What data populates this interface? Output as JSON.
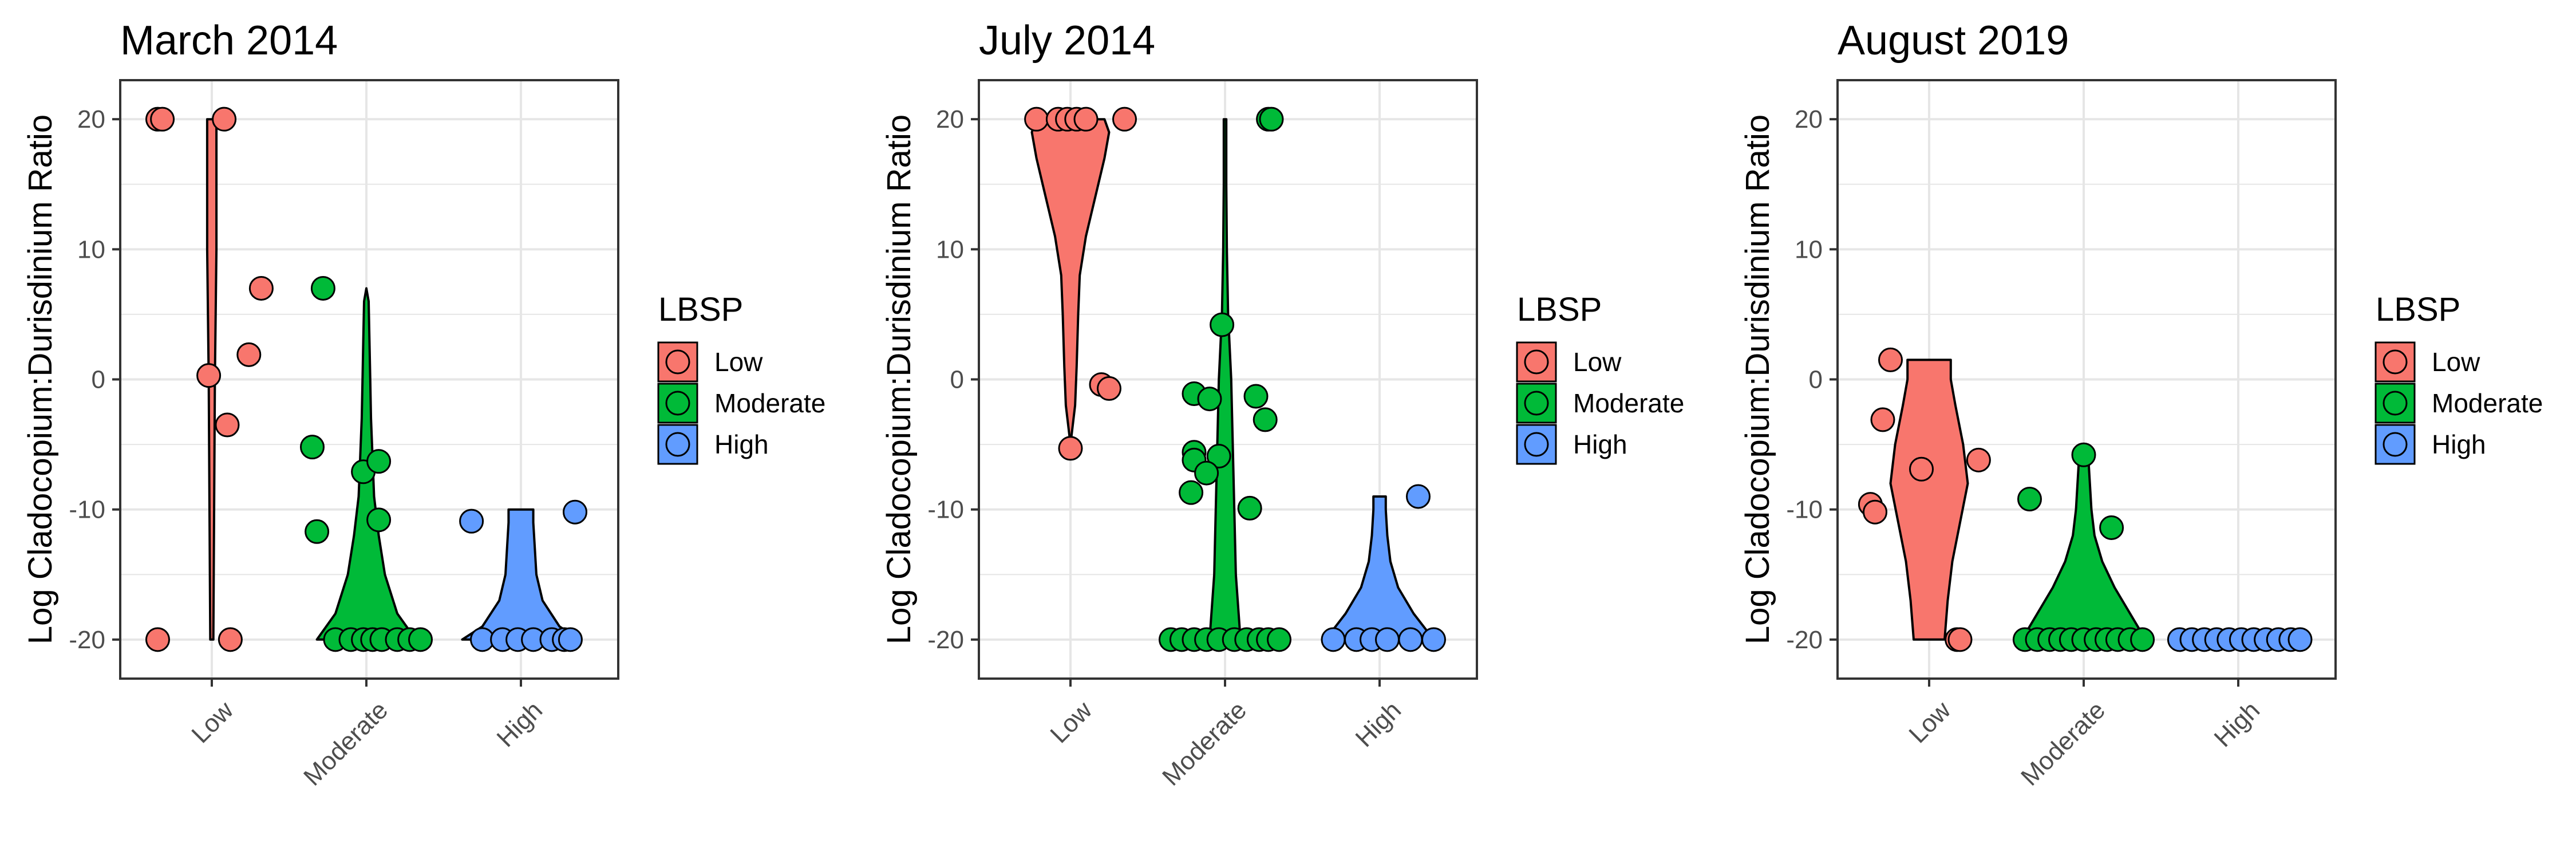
{
  "chart_data": [
    {
      "type": "violin+jitter",
      "title": "March 2014",
      "ylabel": "Log Cladocopium:Durisdinium Ratio",
      "xlabel": "",
      "categories": [
        "Low",
        "Moderate",
        "High"
      ],
      "ylim": [
        -23,
        23
      ],
      "yticks": [
        -20,
        -10,
        0,
        10,
        20
      ],
      "grid": true,
      "legend": {
        "title": "LBSP",
        "position": "right",
        "entries": [
          "Low",
          "Moderate",
          "High"
        ]
      },
      "series": [
        {
          "name": "Low",
          "points": [
            [
              -0.35,
              20
            ],
            [
              -0.32,
              20
            ],
            [
              0.08,
              20
            ],
            [
              -0.35,
              -20
            ],
            [
              0.12,
              -20
            ],
            [
              -0.02,
              0.3
            ],
            [
              0.1,
              -3.5
            ],
            [
              0.24,
              1.9
            ],
            [
              0.32,
              7
            ]
          ],
          "violin": [
            [
              -20,
              0.01
            ],
            [
              0,
              0.02
            ],
            [
              10,
              0.03
            ],
            [
              20,
              0.03
            ]
          ]
        },
        {
          "name": "Moderate",
          "points": [
            [
              -0.28,
              7
            ],
            [
              -0.35,
              -5.2
            ],
            [
              -0.32,
              -11.7
            ],
            [
              -0.02,
              -7.1
            ],
            [
              0.08,
              -6.3
            ],
            [
              0.08,
              -10.8
            ],
            [
              -0.2,
              -20
            ],
            [
              -0.1,
              -20
            ],
            [
              -0.02,
              -20
            ],
            [
              0.04,
              -20
            ],
            [
              0.1,
              -20
            ],
            [
              0.2,
              -20
            ],
            [
              0.28,
              -20
            ],
            [
              0.35,
              -20
            ]
          ],
          "violin": [
            [
              -20,
              0.32
            ],
            [
              -18,
              0.2
            ],
            [
              -15,
              0.12
            ],
            [
              -12,
              0.08
            ],
            [
              -9,
              0.05
            ],
            [
              -6,
              0.04
            ],
            [
              -3,
              0.03
            ],
            [
              0,
              0.025
            ],
            [
              3,
              0.02
            ],
            [
              6,
              0.015
            ],
            [
              7,
              0.0
            ]
          ]
        },
        {
          "name": "High",
          "points": [
            [
              -0.32,
              -10.9
            ],
            [
              0.35,
              -10.2
            ],
            [
              -0.25,
              -20
            ],
            [
              -0.12,
              -20
            ],
            [
              -0.02,
              -20
            ],
            [
              0.08,
              -20
            ],
            [
              0.2,
              -20
            ],
            [
              0.28,
              -20
            ],
            [
              0.32,
              -20
            ]
          ],
          "violin": [
            [
              -20,
              0.38
            ],
            [
              -19,
              0.25
            ],
            [
              -17,
              0.14
            ],
            [
              -15,
              0.1
            ],
            [
              -13,
              0.09
            ],
            [
              -11,
              0.08
            ],
            [
              -10,
              0.08
            ]
          ]
        }
      ]
    },
    {
      "type": "violin+jitter",
      "title": "July 2014",
      "ylabel": "Log Cladocopium:Durisdinium Ratio",
      "xlabel": "",
      "categories": [
        "Low",
        "Moderate",
        "High"
      ],
      "ylim": [
        -23,
        23
      ],
      "yticks": [
        -20,
        -10,
        0,
        10,
        20
      ],
      "grid": true,
      "legend": {
        "title": "LBSP",
        "position": "right",
        "entries": [
          "Low",
          "Moderate",
          "High"
        ]
      },
      "series": [
        {
          "name": "Low",
          "points": [
            [
              -0.22,
              20
            ],
            [
              -0.08,
              20
            ],
            [
              -0.02,
              20
            ],
            [
              0.04,
              20
            ],
            [
              0.1,
              20
            ],
            [
              0.35,
              20
            ],
            [
              0.2,
              -0.4
            ],
            [
              0.25,
              -0.7
            ],
            [
              0.0,
              -5.3
            ]
          ],
          "violin": [
            [
              -5,
              0.0
            ],
            [
              -2,
              0.03
            ],
            [
              1,
              0.04
            ],
            [
              5,
              0.05
            ],
            [
              8,
              0.06
            ],
            [
              11,
              0.1
            ],
            [
              14,
              0.16
            ],
            [
              17,
              0.22
            ],
            [
              19,
              0.25
            ],
            [
              20,
              0.22
            ]
          ]
        },
        {
          "name": "Moderate",
          "points": [
            [
              0.28,
              20
            ],
            [
              0.3,
              20
            ],
            [
              -0.02,
              4.2
            ],
            [
              -0.2,
              -1.1
            ],
            [
              -0.1,
              -1.5
            ],
            [
              0.2,
              -1.3
            ],
            [
              0.26,
              -3.1
            ],
            [
              -0.2,
              -5.6
            ],
            [
              -0.2,
              -6.2
            ],
            [
              -0.04,
              -5.9
            ],
            [
              -0.12,
              -7.2
            ],
            [
              -0.22,
              -8.7
            ],
            [
              0.16,
              -9.9
            ],
            [
              -0.35,
              -20
            ],
            [
              -0.28,
              -20
            ],
            [
              -0.2,
              -20
            ],
            [
              -0.12,
              -20
            ],
            [
              -0.04,
              -20
            ],
            [
              0.06,
              -20
            ],
            [
              0.14,
              -20
            ],
            [
              0.22,
              -20
            ],
            [
              0.28,
              -20
            ],
            [
              0.35,
              -20
            ]
          ],
          "violin": [
            [
              -20,
              0.1
            ],
            [
              -15,
              0.07
            ],
            [
              -10,
              0.06
            ],
            [
              -5,
              0.05
            ],
            [
              0,
              0.04
            ],
            [
              5,
              0.02
            ],
            [
              10,
              0.012
            ],
            [
              15,
              0.008
            ],
            [
              20,
              0.008
            ]
          ]
        },
        {
          "name": "High",
          "points": [
            [
              -0.3,
              -20
            ],
            [
              -0.15,
              -20
            ],
            [
              -0.05,
              -20
            ],
            [
              0.05,
              -20
            ],
            [
              0.2,
              -20
            ],
            [
              0.35,
              -20
            ],
            [
              0.25,
              -9
            ]
          ],
          "violin": [
            [
              -20,
              0.35
            ],
            [
              -18,
              0.22
            ],
            [
              -16,
              0.12
            ],
            [
              -14,
              0.07
            ],
            [
              -12,
              0.05
            ],
            [
              -10,
              0.04
            ],
            [
              -9,
              0.04
            ]
          ]
        }
      ]
    },
    {
      "type": "violin+jitter",
      "title": "August 2019",
      "ylabel": "Log Cladocopium:Durisdinium Ratio",
      "xlabel": "",
      "categories": [
        "Low",
        "Moderate",
        "High"
      ],
      "ylim": [
        -23,
        23
      ],
      "yticks": [
        -20,
        -10,
        0,
        10,
        20
      ],
      "grid": true,
      "legend": {
        "title": "LBSP",
        "position": "right",
        "entries": [
          "Low",
          "Moderate",
          "High"
        ]
      },
      "series": [
        {
          "name": "Low",
          "points": [
            [
              -0.25,
              1.5
            ],
            [
              -0.3,
              -3.1
            ],
            [
              -0.05,
              -6.9
            ],
            [
              0.32,
              -6.2
            ],
            [
              -0.38,
              -9.6
            ],
            [
              -0.35,
              -10.2
            ],
            [
              0.18,
              -20
            ],
            [
              0.2,
              -20
            ]
          ],
          "violin": [
            [
              -20,
              0.1
            ],
            [
              -17,
              0.12
            ],
            [
              -14,
              0.15
            ],
            [
              -11,
              0.2
            ],
            [
              -8,
              0.25
            ],
            [
              -5,
              0.22
            ],
            [
              -2,
              0.17
            ],
            [
              0,
              0.14
            ],
            [
              1.5,
              0.14
            ]
          ]
        },
        {
          "name": "Moderate",
          "points": [
            [
              -0.35,
              -9.2
            ],
            [
              0.0,
              -5.8
            ],
            [
              0.18,
              -11.4
            ],
            [
              -0.38,
              -20
            ],
            [
              -0.3,
              -20
            ],
            [
              -0.22,
              -20
            ],
            [
              -0.15,
              -20
            ],
            [
              -0.08,
              -20
            ],
            [
              0.0,
              -20
            ],
            [
              0.08,
              -20
            ],
            [
              0.15,
              -20
            ],
            [
              0.22,
              -20
            ],
            [
              0.3,
              -20
            ],
            [
              0.38,
              -20
            ]
          ],
          "violin": [
            [
              -20,
              0.4
            ],
            [
              -18,
              0.3
            ],
            [
              -16,
              0.2
            ],
            [
              -14,
              0.12
            ],
            [
              -12,
              0.07
            ],
            [
              -10,
              0.05
            ],
            [
              -8,
              0.04
            ],
            [
              -6,
              0.03
            ],
            [
              -5.5,
              0.0
            ]
          ]
        },
        {
          "name": "High",
          "points": [
            [
              -0.38,
              -20
            ],
            [
              -0.3,
              -20
            ],
            [
              -0.22,
              -20
            ],
            [
              -0.14,
              -20
            ],
            [
              -0.06,
              -20
            ],
            [
              0.02,
              -20
            ],
            [
              0.1,
              -20
            ],
            [
              0.18,
              -20
            ],
            [
              0.26,
              -20
            ],
            [
              0.34,
              -20
            ],
            [
              0.4,
              -20
            ]
          ],
          "violin": []
        }
      ]
    }
  ],
  "colors": {
    "Low": "#F8766D",
    "Moderate": "#00BA38",
    "High": "#619CFF",
    "grid": "#e6e6e6",
    "panel_border": "#333333"
  }
}
